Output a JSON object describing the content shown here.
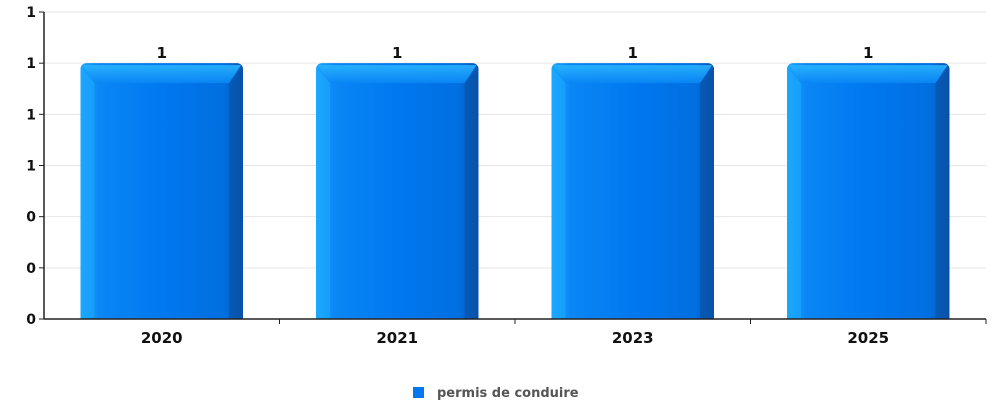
{
  "chart_data": {
    "type": "bar",
    "categories": [
      "2020",
      "2021",
      "2023",
      "2025"
    ],
    "series": [
      {
        "name": "permis de conduire",
        "values": [
          1,
          1,
          1,
          1
        ],
        "color": "#0078f0"
      }
    ],
    "y_tick_labels": [
      "0",
      "0",
      "0",
      "1",
      "1",
      "1",
      "1"
    ],
    "data_labels": [
      "1",
      "1",
      "1",
      "1"
    ],
    "ylim": [
      0,
      1.2
    ],
    "grid": true,
    "legend_position": "bottom-center"
  }
}
